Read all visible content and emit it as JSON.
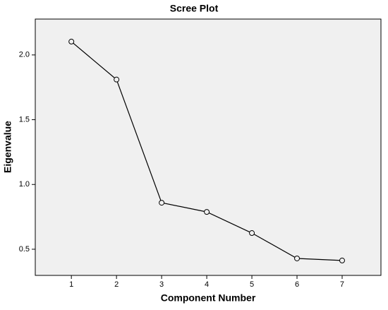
{
  "chart_data": {
    "type": "line",
    "title": "Scree Plot",
    "x_label": "Component Number",
    "y_label": "Eigenvalue",
    "x": [
      1,
      2,
      3,
      4,
      5,
      6,
      7
    ],
    "series": [
      {
        "name": "Eigenvalue",
        "color": "#000000",
        "values": [
          2.103,
          1.81,
          0.859,
          0.788,
          0.625,
          0.429,
          0.413
        ]
      }
    ],
    "xlim": [
      0.2,
      7.86
    ],
    "xticks": [
      1,
      2,
      3,
      4,
      5,
      6,
      7
    ],
    "ylim": [
      0.298,
      2.277
    ],
    "yticks": [
      0.5,
      {
        "value": 1,
        "label": "1.0"
      },
      1.5,
      {
        "value": 2,
        "label": "2.0"
      }
    ],
    "background": "#f0f0f0"
  }
}
